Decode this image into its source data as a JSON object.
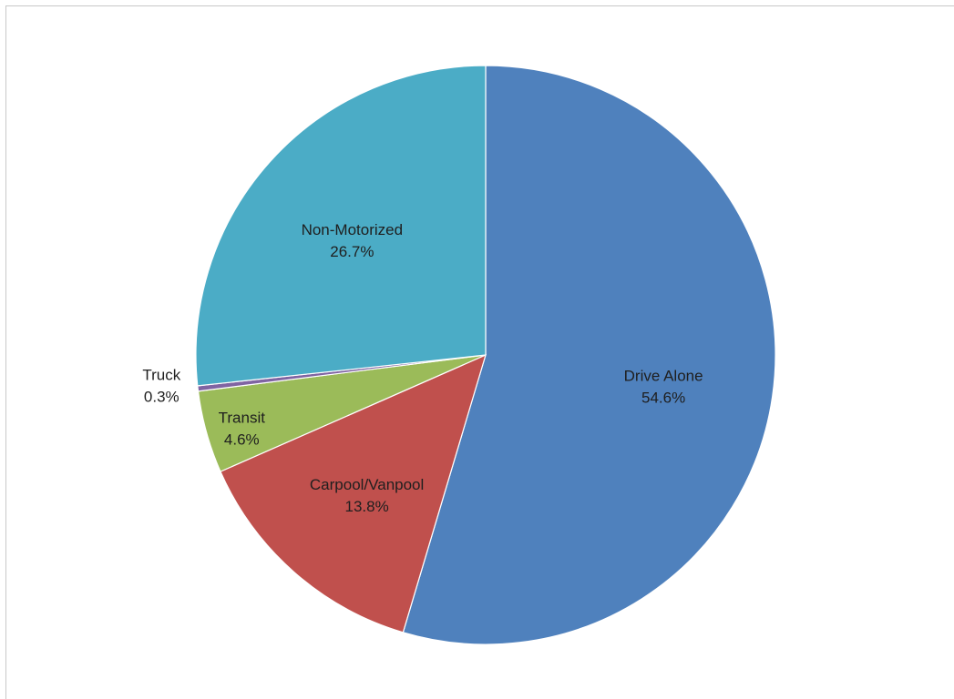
{
  "chart_data": {
    "type": "pie",
    "title": "",
    "legend": "none",
    "slices": [
      {
        "label": "Drive Alone",
        "value": 54.6,
        "value_label": "54.6%",
        "color": "#4f81bd"
      },
      {
        "label": "Carpool/Vanpool",
        "value": 13.8,
        "value_label": "13.8%",
        "color": "#c0504d"
      },
      {
        "label": "Transit",
        "value": 4.6,
        "value_label": "4.6%",
        "color": "#9bbb59"
      },
      {
        "label": "Truck",
        "value": 0.3,
        "value_label": "0.3%",
        "color": "#8064a2"
      },
      {
        "label": "Non-Motorized",
        "value": 26.7,
        "value_label": "26.7%",
        "color": "#4bacc6"
      }
    ]
  }
}
